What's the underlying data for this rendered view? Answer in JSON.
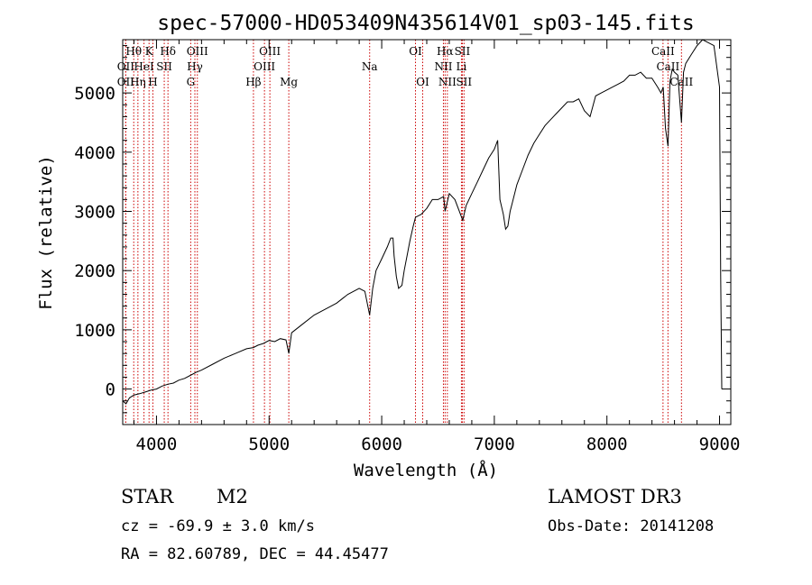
{
  "chart_data": {
    "type": "line",
    "title": "spec-57000-HD053409N435614V01_sp03-145.fits",
    "xlabel": "Wavelength (Å)",
    "ylabel": "Flux (relative)",
    "xlim": [
      3700,
      9100
    ],
    "ylim": [
      -600,
      5900
    ],
    "x_ticks": [
      4000,
      5000,
      6000,
      7000,
      8000,
      9000
    ],
    "y_ticks": [
      0,
      1000,
      2000,
      3000,
      4000,
      5000
    ],
    "x_tick_labels": [
      "4000",
      "5000",
      "6000",
      "7000",
      "8000",
      "9000"
    ],
    "y_tick_labels": [
      "0",
      "1000",
      "2000",
      "3000",
      "4000",
      "5000"
    ],
    "line_color": "#000000",
    "marker_color": "#cc0000",
    "series": [
      {
        "x": [
          3700,
          3730,
          3760,
          3800,
          3850,
          3900,
          3950,
          4000,
          4050,
          4100,
          4150,
          4200,
          4250,
          4300,
          4350,
          4400,
          4500,
          4600,
          4700,
          4800,
          4860,
          4900,
          4950,
          5000,
          5050,
          5100,
          5150,
          5175,
          5200,
          5300,
          5400,
          5500,
          5600,
          5700,
          5800,
          5850,
          5893,
          5920,
          5950,
          6000,
          6050,
          6080,
          6100,
          6110,
          6130,
          6150,
          6180,
          6200,
          6230,
          6250,
          6280,
          6300,
          6350,
          6400,
          6450,
          6500,
          6550,
          6563,
          6600,
          6650,
          6700,
          6720,
          6750,
          6800,
          6850,
          6900,
          6950,
          7000,
          7030,
          7050,
          7080,
          7100,
          7120,
          7140,
          7160,
          7200,
          7250,
          7300,
          7350,
          7400,
          7450,
          7500,
          7550,
          7600,
          7650,
          7700,
          7750,
          7800,
          7850,
          7900,
          7950,
          8000,
          8050,
          8100,
          8150,
          8200,
          8250,
          8300,
          8350,
          8400,
          8450,
          8480,
          8500,
          8520,
          8542,
          8560,
          8580,
          8600,
          8630,
          8662,
          8680,
          8700,
          8750,
          8800,
          8850,
          8900,
          8950,
          9000,
          9010,
          9020
        ],
        "y": [
          -200,
          -250,
          -150,
          -100,
          -80,
          -50,
          -20,
          0,
          50,
          80,
          100,
          150,
          180,
          230,
          280,
          320,
          420,
          520,
          600,
          680,
          700,
          740,
          770,
          820,
          800,
          850,
          830,
          600,
          950,
          1100,
          1250,
          1350,
          1450,
          1600,
          1700,
          1650,
          1250,
          1700,
          2000,
          2200,
          2400,
          2550,
          2550,
          2250,
          1900,
          1700,
          1750,
          2000,
          2300,
          2500,
          2750,
          2900,
          2950,
          3050,
          3200,
          3200,
          3250,
          3000,
          3300,
          3200,
          2950,
          2850,
          3100,
          3300,
          3500,
          3700,
          3900,
          4050,
          4200,
          3200,
          2950,
          2700,
          2750,
          3000,
          3150,
          3450,
          3700,
          3950,
          4150,
          4300,
          4450,
          4550,
          4650,
          4750,
          4850,
          4850,
          4900,
          4700,
          4600,
          4950,
          5000,
          5050,
          5100,
          5150,
          5200,
          5300,
          5300,
          5350,
          5250,
          5250,
          5100,
          5000,
          5100,
          4400,
          4100,
          5200,
          5400,
          5350,
          5300,
          4500,
          5350,
          5500,
          5650,
          5800,
          5900,
          5850,
          5800,
          5100,
          1900,
          0
        ]
      }
    ],
    "markers": [
      {
        "label": "Hθ",
        "x": 3798,
        "row": 0
      },
      {
        "label": "OII",
        "x": 3727,
        "row": 1
      },
      {
        "label": "OII",
        "x": 3727,
        "row": 2
      },
      {
        "label": "K",
        "x": 3934,
        "row": 0
      },
      {
        "label": "Hδ",
        "x": 4102,
        "row": 0
      },
      {
        "label": "HeI",
        "x": 3889,
        "row": 1
      },
      {
        "label": "SII",
        "x": 4069,
        "row": 1
      },
      {
        "label": "Hη",
        "x": 3835,
        "row": 2
      },
      {
        "label": "H",
        "x": 3968,
        "row": 2
      },
      {
        "label": "OIII",
        "x": 4363,
        "row": 0
      },
      {
        "label": "Hγ",
        "x": 4341,
        "row": 1
      },
      {
        "label": "G",
        "x": 4304,
        "row": 2
      },
      {
        "label": "OIII",
        "x": 5007,
        "row": 0
      },
      {
        "label": "OIII",
        "x": 4959,
        "row": 1
      },
      {
        "label": "Hβ",
        "x": 4861,
        "row": 2
      },
      {
        "label": "Mg",
        "x": 5175,
        "row": 2
      },
      {
        "label": "Na",
        "x": 5893,
        "row": 1
      },
      {
        "label": "OI",
        "x": 6300,
        "row": 0
      },
      {
        "label": "OI",
        "x": 6364,
        "row": 2
      },
      {
        "label": "Hα",
        "x": 6563,
        "row": 0
      },
      {
        "label": "SII",
        "x": 6716,
        "row": 0
      },
      {
        "label": "NII",
        "x": 6548,
        "row": 1
      },
      {
        "label": "Li",
        "x": 6708,
        "row": 1
      },
      {
        "label": "NII",
        "x": 6583,
        "row": 2
      },
      {
        "label": "SII",
        "x": 6731,
        "row": 2
      },
      {
        "label": "CaII",
        "x": 8498,
        "row": 0
      },
      {
        "label": "CaII",
        "x": 8542,
        "row": 1
      },
      {
        "label": "CaII",
        "x": 8662,
        "row": 2
      }
    ]
  },
  "info": {
    "class": "STAR",
    "subclass": "M2",
    "survey": "LAMOST DR3",
    "cz": "cz = -69.9 ± 3.0 km/s",
    "obs_date": "Obs-Date: 20141208",
    "coords": "RA =  82.60789, DEC =  44.45477"
  }
}
